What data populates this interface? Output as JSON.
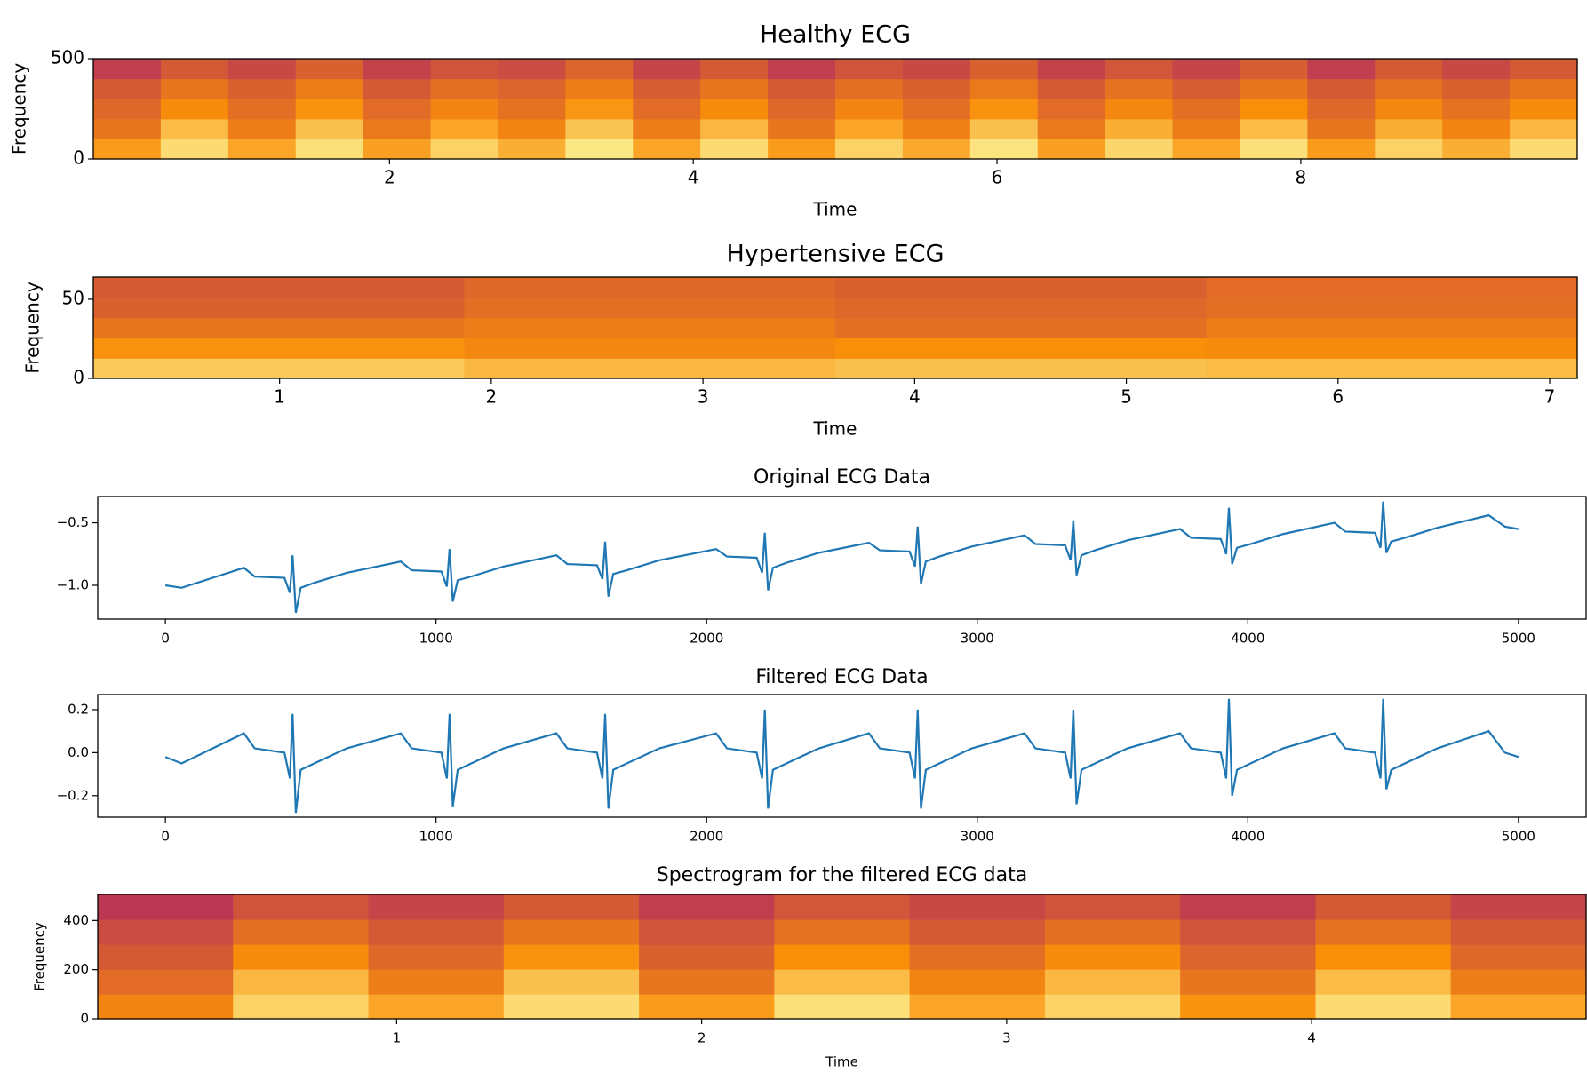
{
  "chart_data": [
    {
      "type": "spectrogram",
      "title": "Healthy ECG",
      "x_label": "Time",
      "y_label": "Frequency",
      "colormap": "inferno",
      "xlim": [
        0.05,
        9.82
      ],
      "ylim": [
        0,
        500
      ],
      "xticks": [
        2,
        4,
        6,
        8
      ],
      "yticks": [
        0,
        500
      ],
      "values": [
        [
          0.78,
          0.92,
          0.8,
          0.93,
          0.79,
          0.9,
          0.82,
          0.95,
          0.8,
          0.92,
          0.78,
          0.9,
          0.81,
          0.94,
          0.79,
          0.91,
          0.8,
          0.93,
          0.78,
          0.9,
          0.82,
          0.92
        ],
        [
          0.68,
          0.85,
          0.7,
          0.86,
          0.69,
          0.8,
          0.72,
          0.87,
          0.7,
          0.84,
          0.68,
          0.8,
          0.71,
          0.86,
          0.69,
          0.82,
          0.7,
          0.85,
          0.68,
          0.82,
          0.72,
          0.84
        ],
        [
          0.64,
          0.74,
          0.66,
          0.76,
          0.65,
          0.72,
          0.67,
          0.77,
          0.65,
          0.74,
          0.64,
          0.72,
          0.66,
          0.76,
          0.65,
          0.73,
          0.66,
          0.75,
          0.64,
          0.73,
          0.67,
          0.74
        ],
        [
          0.6,
          0.68,
          0.62,
          0.7,
          0.6,
          0.66,
          0.63,
          0.7,
          0.61,
          0.68,
          0.6,
          0.66,
          0.62,
          0.69,
          0.6,
          0.67,
          0.61,
          0.68,
          0.6,
          0.67,
          0.62,
          0.68
        ],
        [
          0.52,
          0.6,
          0.55,
          0.62,
          0.53,
          0.58,
          0.56,
          0.63,
          0.54,
          0.6,
          0.52,
          0.58,
          0.55,
          0.62,
          0.53,
          0.59,
          0.54,
          0.61,
          0.52,
          0.6,
          0.55,
          0.6
        ]
      ]
    },
    {
      "type": "spectrogram",
      "title": "Hypertensive ECG",
      "x_label": "Time",
      "y_label": "Frequency",
      "colormap": "inferno",
      "xlim": [
        0.12,
        7.13
      ],
      "ylim": [
        0,
        64
      ],
      "xticks": [
        1,
        2,
        3,
        4,
        5,
        6,
        7
      ],
      "yticks": [
        0,
        50
      ],
      "values": [
        [
          0.88,
          0.84,
          0.86,
          0.85
        ],
        [
          0.76,
          0.73,
          0.75,
          0.74
        ],
        [
          0.68,
          0.7,
          0.66,
          0.7
        ],
        [
          0.62,
          0.66,
          0.64,
          0.66
        ],
        [
          0.6,
          0.64,
          0.62,
          0.65
        ]
      ]
    },
    {
      "type": "line",
      "title": "Original ECG Data",
      "color": "#1f77b4",
      "xlim": [
        -250,
        5250
      ],
      "ylim": [
        -1.27,
        -0.29
      ],
      "xticks": [
        0,
        1000,
        2000,
        3000,
        4000,
        5000
      ],
      "yticks": [
        {
          "value": -1.0,
          "label": "−1.0"
        },
        {
          "value": -0.5,
          "label": "−0.5"
        }
      ],
      "x": [
        0,
        60,
        290,
        330,
        440,
        460,
        470,
        482,
        500,
        550,
        670,
        870,
        910,
        1020,
        1040,
        1050,
        1062,
        1080,
        1130,
        1250,
        1445,
        1485,
        1595,
        1615,
        1625,
        1637,
        1655,
        1705,
        1825,
        2035,
        2075,
        2185,
        2205,
        2215,
        2227,
        2245,
        2295,
        2415,
        2600,
        2640,
        2750,
        2770,
        2780,
        2792,
        2810,
        2860,
        2980,
        3175,
        3215,
        3325,
        3345,
        3355,
        3367,
        3385,
        3435,
        3555,
        3750,
        3790,
        3900,
        3920,
        3930,
        3942,
        3960,
        4010,
        4130,
        4320,
        4360,
        4470,
        4490,
        4500,
        4512,
        4530,
        4580,
        4700,
        4890,
        4950,
        5000
      ],
      "values": [
        -1.0,
        -1.02,
        -0.86,
        -0.93,
        -0.94,
        -1.06,
        -0.76,
        -1.22,
        -1.02,
        -0.98,
        -0.9,
        -0.81,
        -0.88,
        -0.89,
        -1.01,
        -0.71,
        -1.13,
        -0.96,
        -0.93,
        -0.85,
        -0.76,
        -0.83,
        -0.84,
        -0.95,
        -0.65,
        -1.09,
        -0.91,
        -0.88,
        -0.8,
        -0.71,
        -0.77,
        -0.78,
        -0.9,
        -0.58,
        -1.04,
        -0.86,
        -0.82,
        -0.74,
        -0.66,
        -0.72,
        -0.73,
        -0.85,
        -0.53,
        -0.99,
        -0.81,
        -0.77,
        -0.69,
        -0.6,
        -0.67,
        -0.68,
        -0.8,
        -0.48,
        -0.92,
        -0.76,
        -0.72,
        -0.64,
        -0.55,
        -0.62,
        -0.63,
        -0.75,
        -0.38,
        -0.83,
        -0.7,
        -0.67,
        -0.59,
        -0.5,
        -0.57,
        -0.58,
        -0.7,
        -0.33,
        -0.74,
        -0.65,
        -0.62,
        -0.54,
        -0.44,
        -0.53,
        -0.55
      ]
    },
    {
      "type": "line",
      "title": "Filtered ECG Data",
      "color": "#1f77b4",
      "xlim": [
        -250,
        5250
      ],
      "ylim": [
        -0.3,
        0.27
      ],
      "xticks": [
        0,
        1000,
        2000,
        3000,
        4000,
        5000
      ],
      "yticks": [
        {
          "value": -0.2,
          "label": "−0.2"
        },
        {
          "value": 0.0,
          "label": "0.0"
        },
        0.2
      ],
      "x": [
        0,
        60,
        290,
        330,
        440,
        460,
        470,
        482,
        500,
        550,
        670,
        870,
        910,
        1020,
        1040,
        1050,
        1062,
        1080,
        1130,
        1250,
        1445,
        1485,
        1595,
        1615,
        1625,
        1637,
        1655,
        1705,
        1825,
        2035,
        2075,
        2185,
        2205,
        2215,
        2227,
        2245,
        2295,
        2415,
        2600,
        2640,
        2750,
        2770,
        2780,
        2792,
        2810,
        2860,
        2980,
        3175,
        3215,
        3325,
        3345,
        3355,
        3367,
        3385,
        3435,
        3555,
        3750,
        3790,
        3900,
        3920,
        3930,
        3942,
        3960,
        4010,
        4130,
        4320,
        4360,
        4470,
        4490,
        4500,
        4512,
        4530,
        4580,
        4700,
        4890,
        4950,
        5000
      ],
      "values": [
        -0.02,
        -0.05,
        0.09,
        0.02,
        0.0,
        -0.12,
        0.18,
        -0.28,
        -0.08,
        -0.05,
        0.02,
        0.09,
        0.02,
        0.0,
        -0.12,
        0.18,
        -0.25,
        -0.08,
        -0.05,
        0.02,
        0.09,
        0.02,
        0.0,
        -0.12,
        0.18,
        -0.26,
        -0.08,
        -0.05,
        0.02,
        0.09,
        0.02,
        0.0,
        -0.12,
        0.2,
        -0.26,
        -0.08,
        -0.05,
        0.02,
        0.09,
        0.02,
        0.0,
        -0.12,
        0.2,
        -0.26,
        -0.08,
        -0.05,
        0.02,
        0.09,
        0.02,
        0.0,
        -0.12,
        0.2,
        -0.24,
        -0.08,
        -0.05,
        0.02,
        0.09,
        0.02,
        0.0,
        -0.12,
        0.25,
        -0.2,
        -0.08,
        -0.05,
        0.02,
        0.09,
        0.02,
        0.0,
        -0.12,
        0.25,
        -0.17,
        -0.08,
        -0.05,
        0.02,
        0.1,
        0.0,
        -0.02
      ]
    },
    {
      "type": "spectrogram",
      "title": "Spectrogram for the filtered ECG data",
      "x_label": "Time",
      "y_label": "Frequency",
      "colormap": "inferno",
      "xlim": [
        0.02,
        4.9
      ],
      "ylim": [
        0,
        506
      ],
      "xticks": [
        1,
        2,
        3,
        4
      ],
      "yticks": [
        0,
        200,
        400
      ],
      "values": [
        [
          0.72,
          0.9,
          0.8,
          0.92,
          0.78,
          0.93,
          0.8,
          0.9,
          0.76,
          0.92,
          0.8
        ],
        [
          0.65,
          0.84,
          0.7,
          0.86,
          0.68,
          0.85,
          0.72,
          0.84,
          0.68,
          0.85,
          0.7
        ],
        [
          0.6,
          0.74,
          0.64,
          0.76,
          0.62,
          0.75,
          0.66,
          0.74,
          0.63,
          0.75,
          0.64
        ],
        [
          0.56,
          0.66,
          0.6,
          0.68,
          0.58,
          0.67,
          0.6,
          0.66,
          0.58,
          0.67,
          0.6
        ],
        [
          0.5,
          0.58,
          0.54,
          0.6,
          0.52,
          0.59,
          0.55,
          0.58,
          0.52,
          0.6,
          0.54
        ]
      ]
    }
  ]
}
